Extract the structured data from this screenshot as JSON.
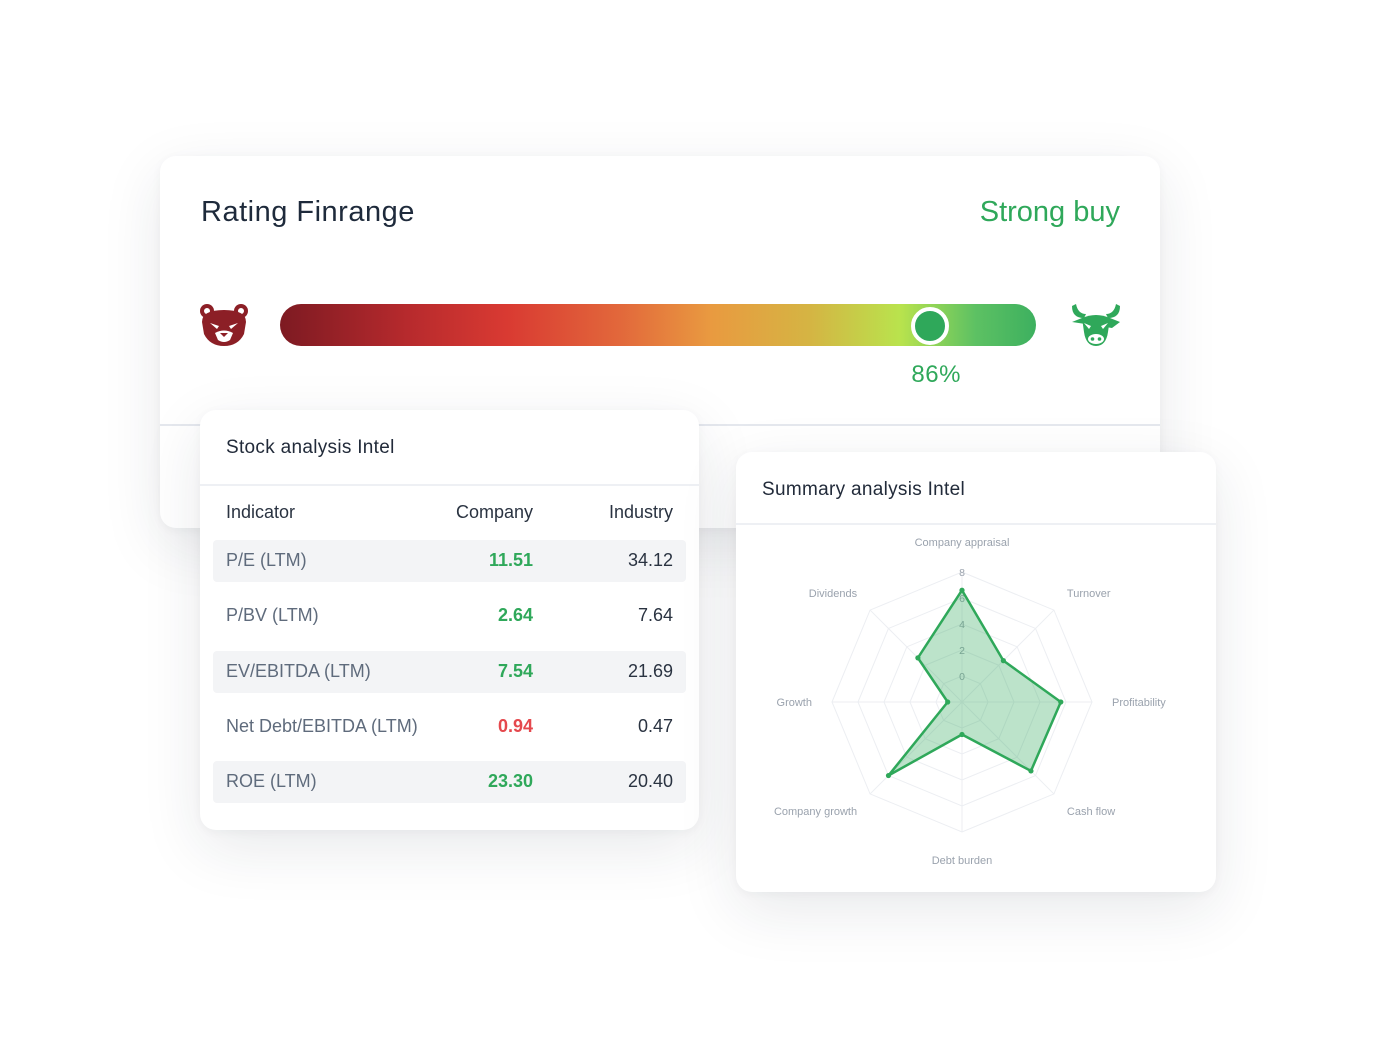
{
  "rating": {
    "title": "Rating Finrange",
    "verdict": "Strong buy",
    "percent_label": "86%",
    "percent_value": 86,
    "bear_icon": "bear-icon",
    "bull_icon": "bull-icon",
    "colors": {
      "bear": "#8c1f26",
      "bull": "#2fa85a",
      "positive": "#2fa85a"
    }
  },
  "stock": {
    "title": "Stock analysis Intel",
    "columns": [
      "Indicator",
      "Company",
      "Industry"
    ],
    "rows": [
      {
        "name": "P/E (LTM)",
        "company": "11.51",
        "industry": "34.12",
        "status": "good"
      },
      {
        "name": "P/BV (LTM)",
        "company": "2.64",
        "industry": "7.64",
        "status": "good"
      },
      {
        "name": "EV/EBITDA (LTM)",
        "company": "7.54",
        "industry": "21.69",
        "status": "good"
      },
      {
        "name": "Net Debt/EBITDA (LTM)",
        "company": "0.94",
        "industry": "0.47",
        "status": "bad"
      },
      {
        "name": "ROE (LTM)",
        "company": "23.30",
        "industry": "20.40",
        "status": "good"
      }
    ],
    "colors": {
      "good": "#2fa85a",
      "bad": "#e5484d"
    }
  },
  "summary": {
    "title": "Summary analysis Intel"
  },
  "chart_data": {
    "type": "radar",
    "axes": [
      "Company appraisal",
      "Turnover",
      "Profitability",
      "Cash flow",
      "Debt burden",
      "Company growth",
      "Growth",
      "Dividends"
    ],
    "ticks": [
      0,
      2,
      4,
      6,
      8
    ],
    "range": [
      -2,
      8
    ],
    "values": [
      6.6,
      2.5,
      5.6,
      5.5,
      0.5,
      6.0,
      -0.9,
      2.8
    ],
    "grid": true,
    "color": "#2fa85a"
  }
}
